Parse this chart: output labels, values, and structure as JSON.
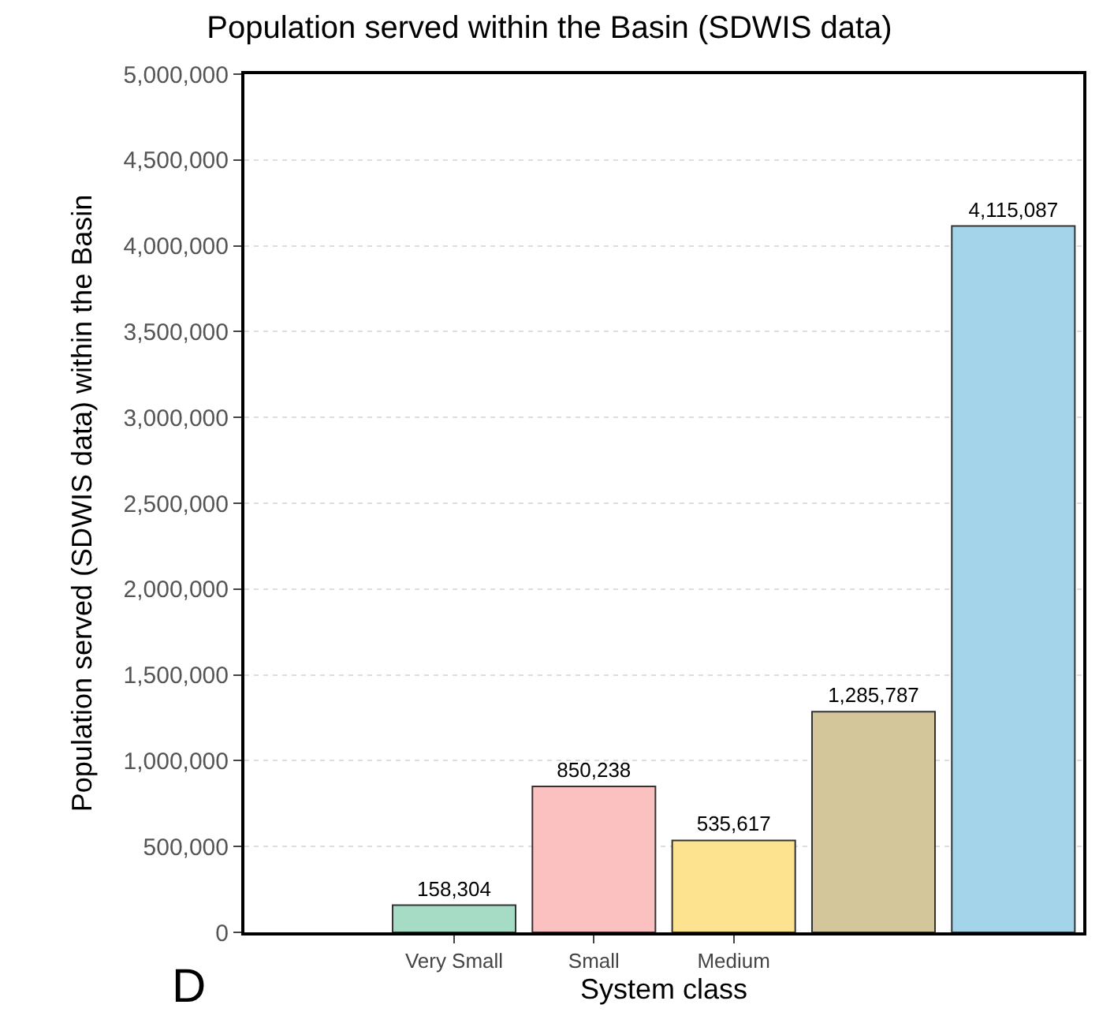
{
  "chart_data": {
    "type": "bar",
    "title": "Population served within the Basin (SDWIS data)",
    "xlabel": "System class",
    "ylabel": "Population served (SDWIS data) within the Basin",
    "categories": [
      "Very Small",
      "Small",
      "Medium",
      null,
      null
    ],
    "values": [
      158304,
      850238,
      535617,
      1285787,
      4115087
    ],
    "colors": [
      "#a6dcc6",
      "#fbc0c0",
      "#fde38f",
      "#d4c69b",
      "#a4d4ea"
    ],
    "ylim": [
      0,
      5000000
    ],
    "yticks": [
      {
        "value": 0,
        "label": "0"
      },
      {
        "value": 500000,
        "label": "500,000"
      },
      {
        "value": 1000000,
        "label": "1,000,000"
      },
      {
        "value": 1500000,
        "label": "1,500,000"
      },
      {
        "value": 2000000,
        "label": "2,000,000"
      },
      {
        "value": 2500000,
        "label": "2,500,000"
      },
      {
        "value": 3000000,
        "label": "3,000,000"
      },
      {
        "value": 3500000,
        "label": "3,500,000"
      },
      {
        "value": 4000000,
        "label": "4,000,000"
      },
      {
        "value": 4500000,
        "label": "4,500,000"
      },
      {
        "value": 5000000,
        "label": "5,000,000"
      }
    ],
    "value_labels": [
      "158,304",
      "850,238",
      "535,617",
      "1,285,787",
      "4,115,087"
    ],
    "grid": "y",
    "legend": false,
    "annotations": [
      "D"
    ]
  }
}
